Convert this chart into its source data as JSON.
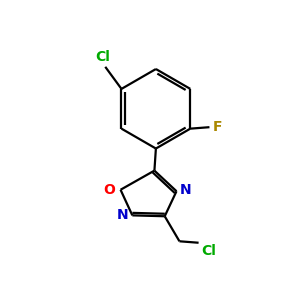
{
  "background_color": "#ffffff",
  "bond_color": "#000000",
  "cl_color": "#00aa00",
  "f_color": "#aa8800",
  "o_color": "#ff0000",
  "n_color": "#0000cc",
  "cl_label": "Cl",
  "f_label": "F",
  "o_label": "O",
  "n_label": "N",
  "figsize": [
    3.0,
    3.0
  ],
  "dpi": 100
}
